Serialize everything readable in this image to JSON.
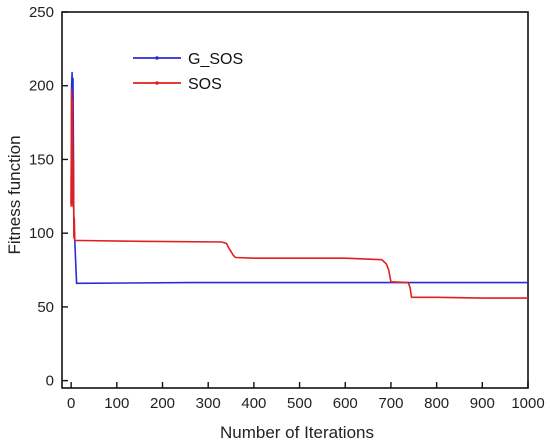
{
  "chart_data": {
    "type": "line",
    "xlabel": "Number of Iterations",
    "ylabel": "Fitness function",
    "xlim": [
      -20,
      1000
    ],
    "ylim": [
      -5,
      250
    ],
    "xticks": [
      0,
      100,
      200,
      300,
      400,
      500,
      600,
      700,
      800,
      900,
      1000
    ],
    "yticks": [
      0,
      50,
      100,
      150,
      200,
      250
    ],
    "grid": false,
    "legend_position": "top-left inside plot",
    "series": [
      {
        "name": "G_SOS",
        "color": "#2b2bd6",
        "x": [
          0,
          1,
          2,
          3,
          4,
          5,
          6,
          8,
          10,
          12,
          14,
          18,
          260,
          1000
        ],
        "y": [
          120,
          200,
          209,
          170,
          205,
          160,
          100,
          95,
          80,
          66,
          66,
          66,
          66.5,
          66.5
        ]
      },
      {
        "name": "SOS",
        "color": "#e02020",
        "x": [
          0,
          1,
          2,
          3,
          4,
          5,
          6,
          7,
          8,
          10,
          12,
          15,
          20,
          150,
          330,
          340,
          345,
          355,
          360,
          400,
          600,
          680,
          690,
          695,
          700,
          738,
          742,
          745,
          800,
          900,
          1000
        ],
        "y": [
          118,
          197,
          120,
          190,
          118,
          150,
          97,
          110,
          95,
          95,
          95,
          95,
          95,
          94.5,
          94,
          93,
          90,
          85,
          83.5,
          83,
          83,
          82,
          79,
          75,
          67,
          66.5,
          63,
          56.5,
          56.5,
          56,
          56
        ]
      }
    ]
  }
}
